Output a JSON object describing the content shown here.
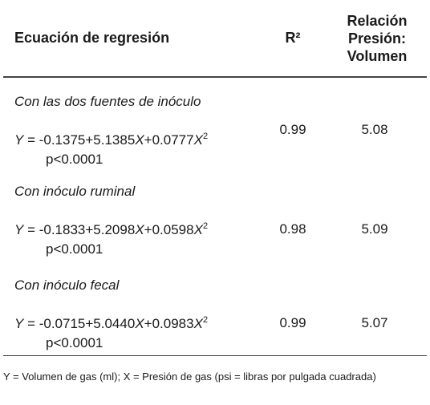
{
  "table": {
    "headers": {
      "equation": "Ecuación de regresión",
      "r2": "R²",
      "ratio": [
        "Relación",
        "Presión:",
        "Volumen"
      ]
    },
    "rows": [
      {
        "label": "Con las dos fuentes de inóculo",
        "equation": [
          "Y",
          " = -0.1375+5.1385",
          "X",
          "+0.0777",
          "X",
          "2"
        ],
        "p": "p<0.0001",
        "r2": "0.99",
        "ratio": "5.08"
      },
      {
        "label": "Con inóculo ruminal",
        "equation": [
          "Y",
          " = -0.1833+5.2098",
          "X",
          "+0.0598",
          "X",
          "2"
        ],
        "p": "p<0.0001",
        "r2": "0.98",
        "ratio": "5.09"
      },
      {
        "label": "Con inóculo fecal",
        "equation": [
          "Y",
          " = -0.0715+5.0440",
          "X",
          "+0.0983",
          "X",
          "2"
        ],
        "p": "p<0.0001",
        "r2": "0.99",
        "ratio": "5.07"
      }
    ],
    "footnote": "Y = Volumen de gas (ml); X = Presión de gas (psi = libras por pulgada cuadrada)"
  }
}
